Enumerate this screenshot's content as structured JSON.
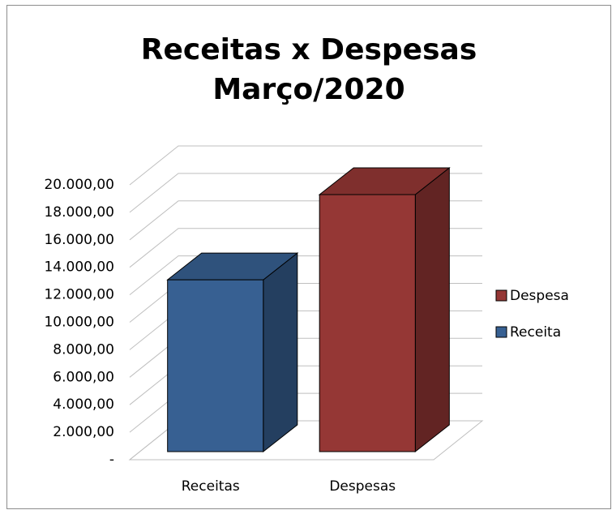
{
  "chart_data": {
    "type": "bar3d",
    "title": "Receitas x Despesas",
    "subtitle": "Março/2020",
    "categories": [
      "Receitas",
      "Despesas"
    ],
    "series": [
      {
        "name": "Despesa",
        "color": "#953735",
        "values": [
          null,
          18700
        ]
      },
      {
        "name": "Receita",
        "color": "#376092",
        "values": [
          12500,
          null
        ]
      }
    ],
    "ylim": [
      0,
      20000
    ],
    "yticks": [
      {
        "value": 0,
        "label": "-"
      },
      {
        "value": 2000,
        "label": "2.000,00"
      },
      {
        "value": 4000,
        "label": "4.000,00"
      },
      {
        "value": 6000,
        "label": "6.000,00"
      },
      {
        "value": 8000,
        "label": "8.000,00"
      },
      {
        "value": 10000,
        "label": "10.000,00"
      },
      {
        "value": 12000,
        "label": "12.000,00"
      },
      {
        "value": 14000,
        "label": "14.000,00"
      },
      {
        "value": 16000,
        "label": "16.000,00"
      },
      {
        "value": 18000,
        "label": "18.000,00"
      },
      {
        "value": 20000,
        "label": "20.000,00"
      }
    ],
    "grid": true,
    "legend": "right"
  }
}
